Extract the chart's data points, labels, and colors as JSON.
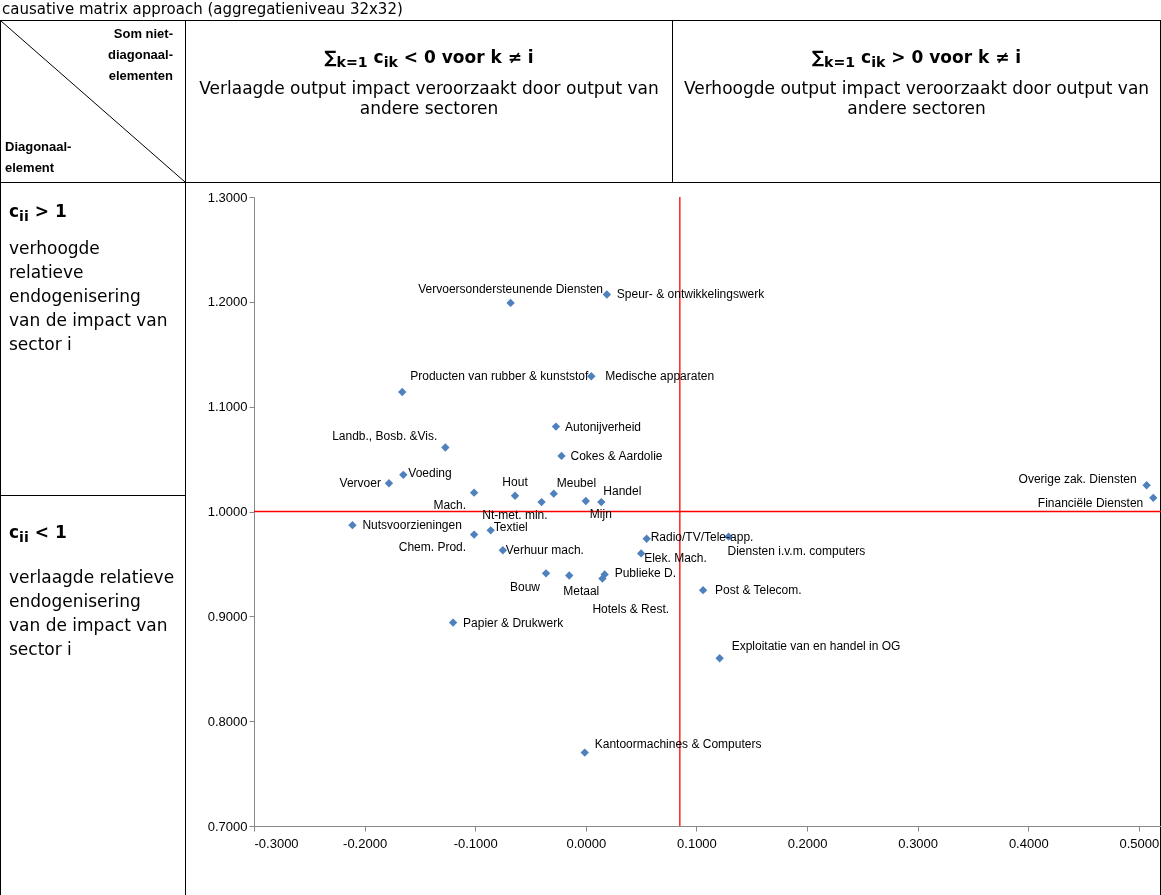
{
  "chart_data": {
    "type": "scatter",
    "title": "causative matrix approach (aggregatieniveau 32x32)",
    "xlim": [
      -0.3,
      0.52
    ],
    "ylim": [
      0.7,
      1.3
    ],
    "xticks": [
      {
        "value": -0.3,
        "label": "-0.3000"
      },
      {
        "value": -0.2,
        "label": "-0.2000"
      },
      {
        "value": -0.1,
        "label": "-0.1000"
      },
      {
        "value": 0,
        "label": "0.0000"
      },
      {
        "value": 0.1,
        "label": "0.1000"
      },
      {
        "value": 0.2,
        "label": "0.2000"
      },
      {
        "value": 0.3,
        "label": "0.3000"
      },
      {
        "value": 0.4,
        "label": "0.4000"
      },
      {
        "value": 0.5,
        "label": "0.5000"
      }
    ],
    "yticks": [
      {
        "value": 0.7,
        "label": "0.7000"
      },
      {
        "value": 0.8,
        "label": "0.8000"
      },
      {
        "value": 0.9,
        "label": "0.9000"
      },
      {
        "value": 1.0,
        "label": "1.0000"
      },
      {
        "value": 1.1,
        "label": "1.1000"
      },
      {
        "value": 1.2,
        "label": "1.2000"
      },
      {
        "value": 1.3,
        "label": "1.3000"
      }
    ],
    "grid": false,
    "marker": "diamond",
    "series": [
      {
        "color": "#4f81bd",
        "x": [
          -0.068,
          0.019,
          -0.166,
          0.005,
          -0.027,
          -0.127,
          -0.022,
          -0.178,
          -0.165,
          -0.101,
          -0.064,
          -0.04,
          -0.029,
          0.014,
          0.0,
          -0.211,
          -0.101,
          -0.086,
          -0.075,
          -0.036,
          -0.015,
          0.017,
          0.015,
          -0.12,
          -0.001,
          0.055,
          0.05,
          0.129,
          0.106,
          0.121,
          0.507,
          0.513
        ],
        "values": [
          1.199,
          1.207,
          1.114,
          1.129,
          1.081,
          1.061,
          1.053,
          1.027,
          1.035,
          1.018,
          1.015,
          1.009,
          1.017,
          1.009,
          1.01,
          0.987,
          0.978,
          0.982,
          0.963,
          0.941,
          0.939,
          0.94,
          0.936,
          0.894,
          0.77,
          0.974,
          0.96,
          0.976,
          0.925,
          0.86,
          1.025,
          1.013
        ]
      }
    ],
    "ref_lines": [
      {
        "axis": "x",
        "value": 0.085,
        "color": "#ff0000"
      },
      {
        "axis": "y",
        "value": 1.0,
        "color": "#ff0000"
      }
    ],
    "annotations": [
      "Som niet-diagonaal-elementen",
      "Diagonaal-element",
      "∑$_{k=1}$ c$_{ik}$ < 0 voor k ≠ i",
      "Verlaagde output impact veroorzaakt door output van andere sectoren",
      "∑$_{k=1}$ c$_{ik}$ > 0 voor k ≠ i",
      "Verhoogde output impact veroorzaakt door output van andere sectoren",
      "c$_{ii}$ > 1",
      "verhoogde relatieve endogenisering van de impact van sector i",
      "c$_{ii}$ < 1",
      "verlaagde relatieve endogenisering van de impact van sector i",
      {
        "text": "Vervoersondersteunende Diensten",
        "x": -0.068,
        "y": 1.199
      },
      {
        "text": "Speur- & ontwikkelingswerk",
        "x": 0.019,
        "y": 1.207
      },
      {
        "text": "Producten van rubber & kunststof",
        "x": -0.166,
        "y": 1.114
      },
      {
        "text": "Medische apparaten",
        "x": 0.005,
        "y": 1.129
      },
      {
        "text": "Autonijverheid",
        "x": -0.027,
        "y": 1.081
      },
      {
        "text": "Landb., Bosb. &Vis.",
        "x": -0.127,
        "y": 1.061
      },
      {
        "text": "Cokes & Aardolie",
        "x": -0.022,
        "y": 1.053
      },
      {
        "text": "Vervoer",
        "x": -0.178,
        "y": 1.027
      },
      {
        "text": "Voeding",
        "x": -0.165,
        "y": 1.035
      },
      {
        "text": "Mach.",
        "x": -0.101,
        "y": 1.018
      },
      {
        "text": "Hout",
        "x": -0.064,
        "y": 1.015
      },
      {
        "text": "Nt-met. min.",
        "x": -0.04,
        "y": 1.009
      },
      {
        "text": "Meubel",
        "x": -0.029,
        "y": 1.017
      },
      {
        "text": "Handel",
        "x": 0.014,
        "y": 1.009
      },
      {
        "text": "Mijn",
        "x": 0.0,
        "y": 1.01
      },
      {
        "text": "Nutsvoorzieningen",
        "x": -0.211,
        "y": 0.987
      },
      {
        "text": "Chem. Prod.",
        "x": -0.101,
        "y": 0.978
      },
      {
        "text": "Textiel",
        "x": -0.086,
        "y": 0.982
      },
      {
        "text": "Verhuur mach.",
        "x": -0.075,
        "y": 0.963
      },
      {
        "text": "Bouw",
        "x": -0.036,
        "y": 0.941
      },
      {
        "text": "Metaal",
        "x": -0.015,
        "y": 0.939
      },
      {
        "text": "Publieke D.",
        "x": 0.017,
        "y": 0.94
      },
      {
        "text": "Hotels & Rest.",
        "x": 0.015,
        "y": 0.936
      },
      {
        "text": "Papier & Drukwerk",
        "x": -0.12,
        "y": 0.894
      },
      {
        "text": "Kantoormachines & Computers",
        "x": -0.001,
        "y": 0.77
      },
      {
        "text": "Radio/TV/Tele-app.",
        "x": 0.055,
        "y": 0.974
      },
      {
        "text": "Elek. Mach.",
        "x": 0.05,
        "y": 0.96
      },
      {
        "text": "Diensten i.v.m. computers",
        "x": 0.129,
        "y": 0.976
      },
      {
        "text": "Post & Telecom.",
        "x": 0.106,
        "y": 0.925
      },
      {
        "text": "Exploitatie van en handel in OG",
        "x": 0.121,
        "y": 0.86
      },
      {
        "text": "Overige zak. Diensten",
        "x": 0.507,
        "y": 1.025
      },
      {
        "text": "Financiële Diensten",
        "x": 0.513,
        "y": 1.013
      }
    ]
  }
}
